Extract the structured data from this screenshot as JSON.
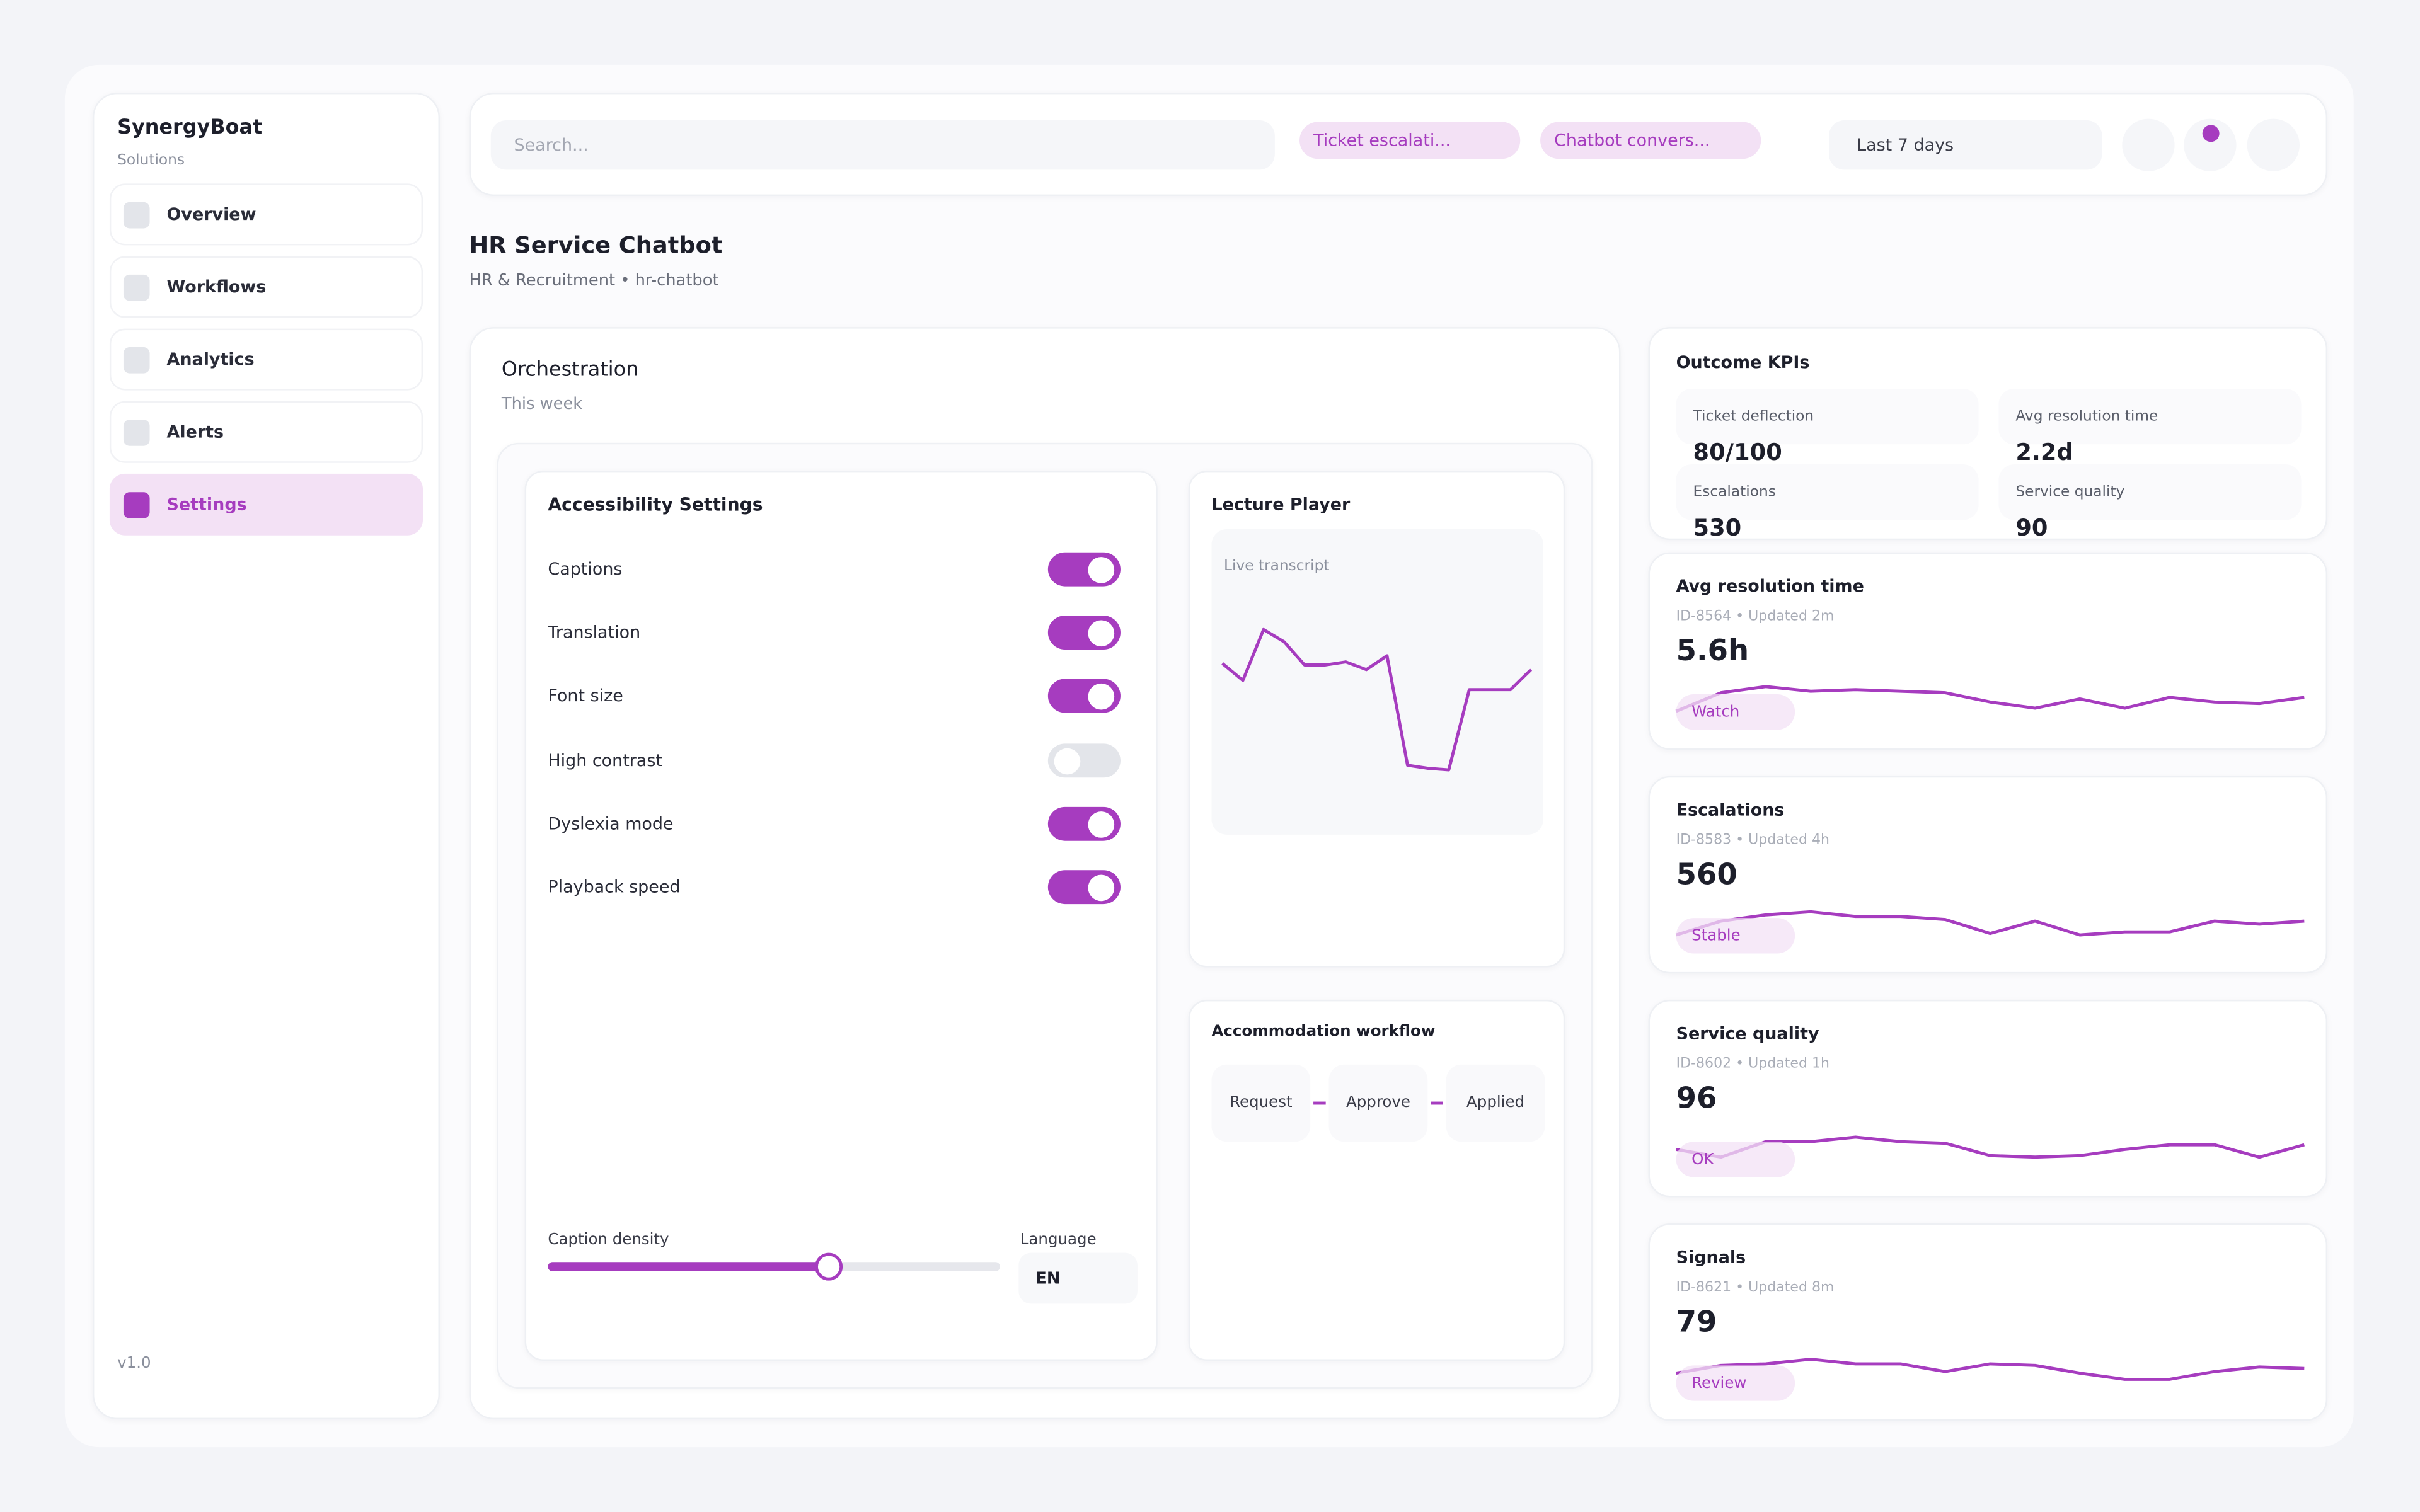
{
  "sidebar": {
    "brand": "SynergyBoat",
    "subtitle": "Solutions",
    "nav": [
      {
        "label": "Overview",
        "active": false
      },
      {
        "label": "Workflows",
        "active": false
      },
      {
        "label": "Analytics",
        "active": false
      },
      {
        "label": "Alerts",
        "active": false
      },
      {
        "label": "Settings",
        "active": true
      }
    ],
    "version": "v1.0"
  },
  "topbar": {
    "search_placeholder": "Search...",
    "chips": [
      "Ticket escalati...",
      "Chatbot convers..."
    ],
    "range": "Last 7 days"
  },
  "header": {
    "title": "HR Service Chatbot",
    "subtitle": "HR & Recruitment • hr-chatbot"
  },
  "orchestration": {
    "title": "Orchestration",
    "subtitle": "This week",
    "accessibility": {
      "title": "Accessibility Settings",
      "settings": [
        {
          "label": "Captions",
          "on": true
        },
        {
          "label": "Translation",
          "on": true
        },
        {
          "label": "Font size",
          "on": true
        },
        {
          "label": "High contrast",
          "on": false
        },
        {
          "label": "Dyslexia mode",
          "on": true
        },
        {
          "label": "Playback speed",
          "on": true
        }
      ],
      "density_label": "Caption density",
      "density": 62,
      "language_label": "Language",
      "language": "EN"
    },
    "player": {
      "title": "Lecture Player",
      "transcript_label": "Live transcript",
      "values": [
        80,
        69,
        102,
        94,
        79,
        79,
        81,
        76,
        85,
        14,
        12,
        11,
        63,
        63,
        63,
        76
      ]
    },
    "workflow": {
      "title": "Accommodation workflow",
      "steps": [
        "Request",
        "Approve",
        "Applied"
      ]
    }
  },
  "kpis": {
    "title": "Outcome KPIs",
    "items": [
      {
        "label": "Ticket deflection",
        "value": "80/100"
      },
      {
        "label": "Avg resolution time",
        "value": "2.2d"
      },
      {
        "label": "Escalations",
        "value": "530"
      },
      {
        "label": "Service quality",
        "value": "90"
      }
    ]
  },
  "metrics": [
    {
      "title": "Avg resolution time",
      "meta": "ID-8564 • Updated 2m",
      "value": "5.6h",
      "badge": "Watch",
      "trend": [
        9,
        21,
        25,
        22,
        23,
        22,
        21,
        15,
        11,
        17,
        11,
        18,
        15,
        14,
        18
      ]
    },
    {
      "title": "Escalations",
      "meta": "ID-8583 • Updated 4h",
      "value": "560",
      "badge": "Stable",
      "trend": [
        9,
        18,
        22,
        24,
        21,
        21,
        19,
        10,
        18,
        9,
        11,
        11,
        18,
        16,
        18
      ]
    },
    {
      "title": "Service quality",
      "meta": "ID-8602 • Updated 1h",
      "value": "96",
      "badge": "OK",
      "trend": [
        15,
        10,
        20,
        20,
        23,
        20,
        19,
        11,
        10,
        11,
        15,
        18,
        18,
        10,
        18
      ]
    },
    {
      "title": "Signals",
      "meta": "ID-8621 • Updated 8m",
      "value": "79",
      "badge": "Review",
      "trend": [
        15,
        20,
        21,
        24,
        21,
        21,
        16,
        21,
        20,
        15,
        11,
        11,
        16,
        19,
        18
      ]
    }
  ]
}
